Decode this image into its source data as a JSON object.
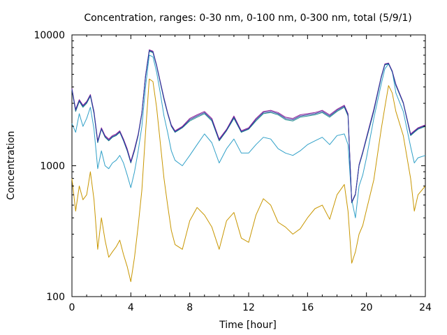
{
  "chart_data": {
    "type": "line",
    "title": "Concentration, ranges: 0-30 nm, 0-100 nm, 0-300 nm, total (5/9/1)",
    "xlabel": "Time [hour]",
    "ylabel": "Concentration",
    "xlim": [
      0,
      24
    ],
    "ylim": [
      100,
      10000
    ],
    "yscale": "log",
    "grid": false,
    "legend": "none",
    "x_ticks": [
      "0",
      "4",
      "8",
      "12",
      "16",
      "20",
      "24"
    ],
    "y_ticks": [
      "100",
      "1000",
      "10000"
    ],
    "x": [
      0,
      0.25,
      0.5,
      0.75,
      1,
      1.25,
      1.5,
      1.75,
      2,
      2.25,
      2.5,
      2.75,
      3,
      3.25,
      3.5,
      3.75,
      4,
      4.25,
      4.5,
      4.75,
      5,
      5.25,
      5.5,
      5.75,
      6,
      6.25,
      6.5,
      6.75,
      7,
      7.5,
      8,
      8.5,
      9,
      9.5,
      10,
      10.5,
      11,
      11.5,
      12,
      12.5,
      13,
      13.5,
      14,
      14.5,
      15,
      15.5,
      16,
      16.5,
      17,
      17.5,
      18,
      18.5,
      18.75,
      19,
      19.25,
      19.5,
      19.75,
      20,
      20.5,
      21,
      21.25,
      21.5,
      21.75,
      22,
      22.5,
      23,
      23.25,
      23.5,
      24
    ],
    "series": [
      {
        "color": "#c89600",
        "values": [
          800,
          450,
          700,
          550,
          600,
          900,
          550,
          230,
          400,
          270,
          200,
          220,
          240,
          270,
          210,
          170,
          130,
          200,
          350,
          650,
          1800,
          4600,
          4400,
          2800,
          1500,
          800,
          500,
          320,
          250,
          230,
          380,
          480,
          420,
          340,
          230,
          380,
          440,
          280,
          260,
          420,
          560,
          500,
          370,
          340,
          300,
          330,
          400,
          470,
          500,
          390,
          600,
          720,
          450,
          180,
          220,
          300,
          350,
          460,
          780,
          1900,
          2800,
          4100,
          3600,
          2600,
          1700,
          800,
          450,
          600,
          700
        ]
      },
      {
        "color": "#30a0c8",
        "values": [
          2100,
          1800,
          2500,
          2000,
          2300,
          2800,
          1900,
          950,
          1300,
          1000,
          950,
          1050,
          1100,
          1200,
          1050,
          850,
          680,
          900,
          1300,
          2000,
          4000,
          7000,
          6800,
          5200,
          3600,
          2400,
          1800,
          1300,
          1100,
          1000,
          1200,
          1450,
          1750,
          1500,
          1050,
          1350,
          1600,
          1250,
          1250,
          1450,
          1650,
          1600,
          1350,
          1250,
          1200,
          1300,
          1450,
          1550,
          1650,
          1450,
          1700,
          1750,
          1450,
          550,
          400,
          700,
          850,
          1150,
          2300,
          4200,
          5500,
          6000,
          5300,
          3600,
          2600,
          1400,
          1050,
          1150,
          1200
        ]
      },
      {
        "color": "#1a8a8a",
        "values": [
          3800,
          2600,
          3100,
          2800,
          3000,
          3400,
          2500,
          1500,
          1900,
          1650,
          1550,
          1650,
          1700,
          1800,
          1550,
          1300,
          1050,
          1300,
          1700,
          2500,
          4800,
          7500,
          7300,
          5800,
          4300,
          3200,
          2500,
          2000,
          1800,
          1950,
          2200,
          2350,
          2500,
          2200,
          1550,
          1850,
          2300,
          1800,
          1900,
          2200,
          2500,
          2550,
          2450,
          2250,
          2200,
          2350,
          2400,
          2450,
          2550,
          2350,
          2600,
          2800,
          2400,
          520,
          600,
          1000,
          1250,
          1600,
          2600,
          4700,
          5900,
          6000,
          5200,
          4100,
          3000,
          1700,
          1800,
          1900,
          2000
        ]
      },
      {
        "color": "#8c1e96",
        "values": [
          3900,
          2700,
          3200,
          2900,
          3100,
          3500,
          2600,
          1550,
          1950,
          1700,
          1600,
          1700,
          1750,
          1850,
          1600,
          1350,
          1080,
          1350,
          1750,
          2550,
          4900,
          7700,
          7500,
          5900,
          4400,
          3300,
          2550,
          2050,
          1850,
          2000,
          2300,
          2450,
          2600,
          2300,
          1600,
          1900,
          2400,
          1850,
          1950,
          2300,
          2600,
          2650,
          2550,
          2350,
          2300,
          2450,
          2500,
          2550,
          2650,
          2450,
          2700,
          2900,
          2500,
          530,
          610,
          1020,
          1280,
          1650,
          2700,
          4800,
          6000,
          6100,
          5300,
          4200,
          3050,
          1750,
          1850,
          1950,
          2050
        ]
      },
      {
        "color": "#2a3aa0",
        "values": [
          3850,
          2650,
          3150,
          2850,
          3050,
          3450,
          2550,
          1520,
          1920,
          1670,
          1570,
          1670,
          1720,
          1820,
          1570,
          1320,
          1060,
          1320,
          1720,
          2520,
          4850,
          7600,
          7400,
          5850,
          4350,
          3250,
          2520,
          2020,
          1820,
          1970,
          2250,
          2400,
          2550,
          2250,
          1570,
          1870,
          2350,
          1820,
          1920,
          2250,
          2550,
          2600,
          2500,
          2300,
          2250,
          2400,
          2450,
          2500,
          2600,
          2400,
          2650,
          2850,
          2450,
          525,
          605,
          1010,
          1265,
          1625,
          2650,
          4750,
          5950,
          6050,
          5250,
          4150,
          3025,
          1725,
          1825,
          1925,
          2025
        ]
      }
    ]
  }
}
